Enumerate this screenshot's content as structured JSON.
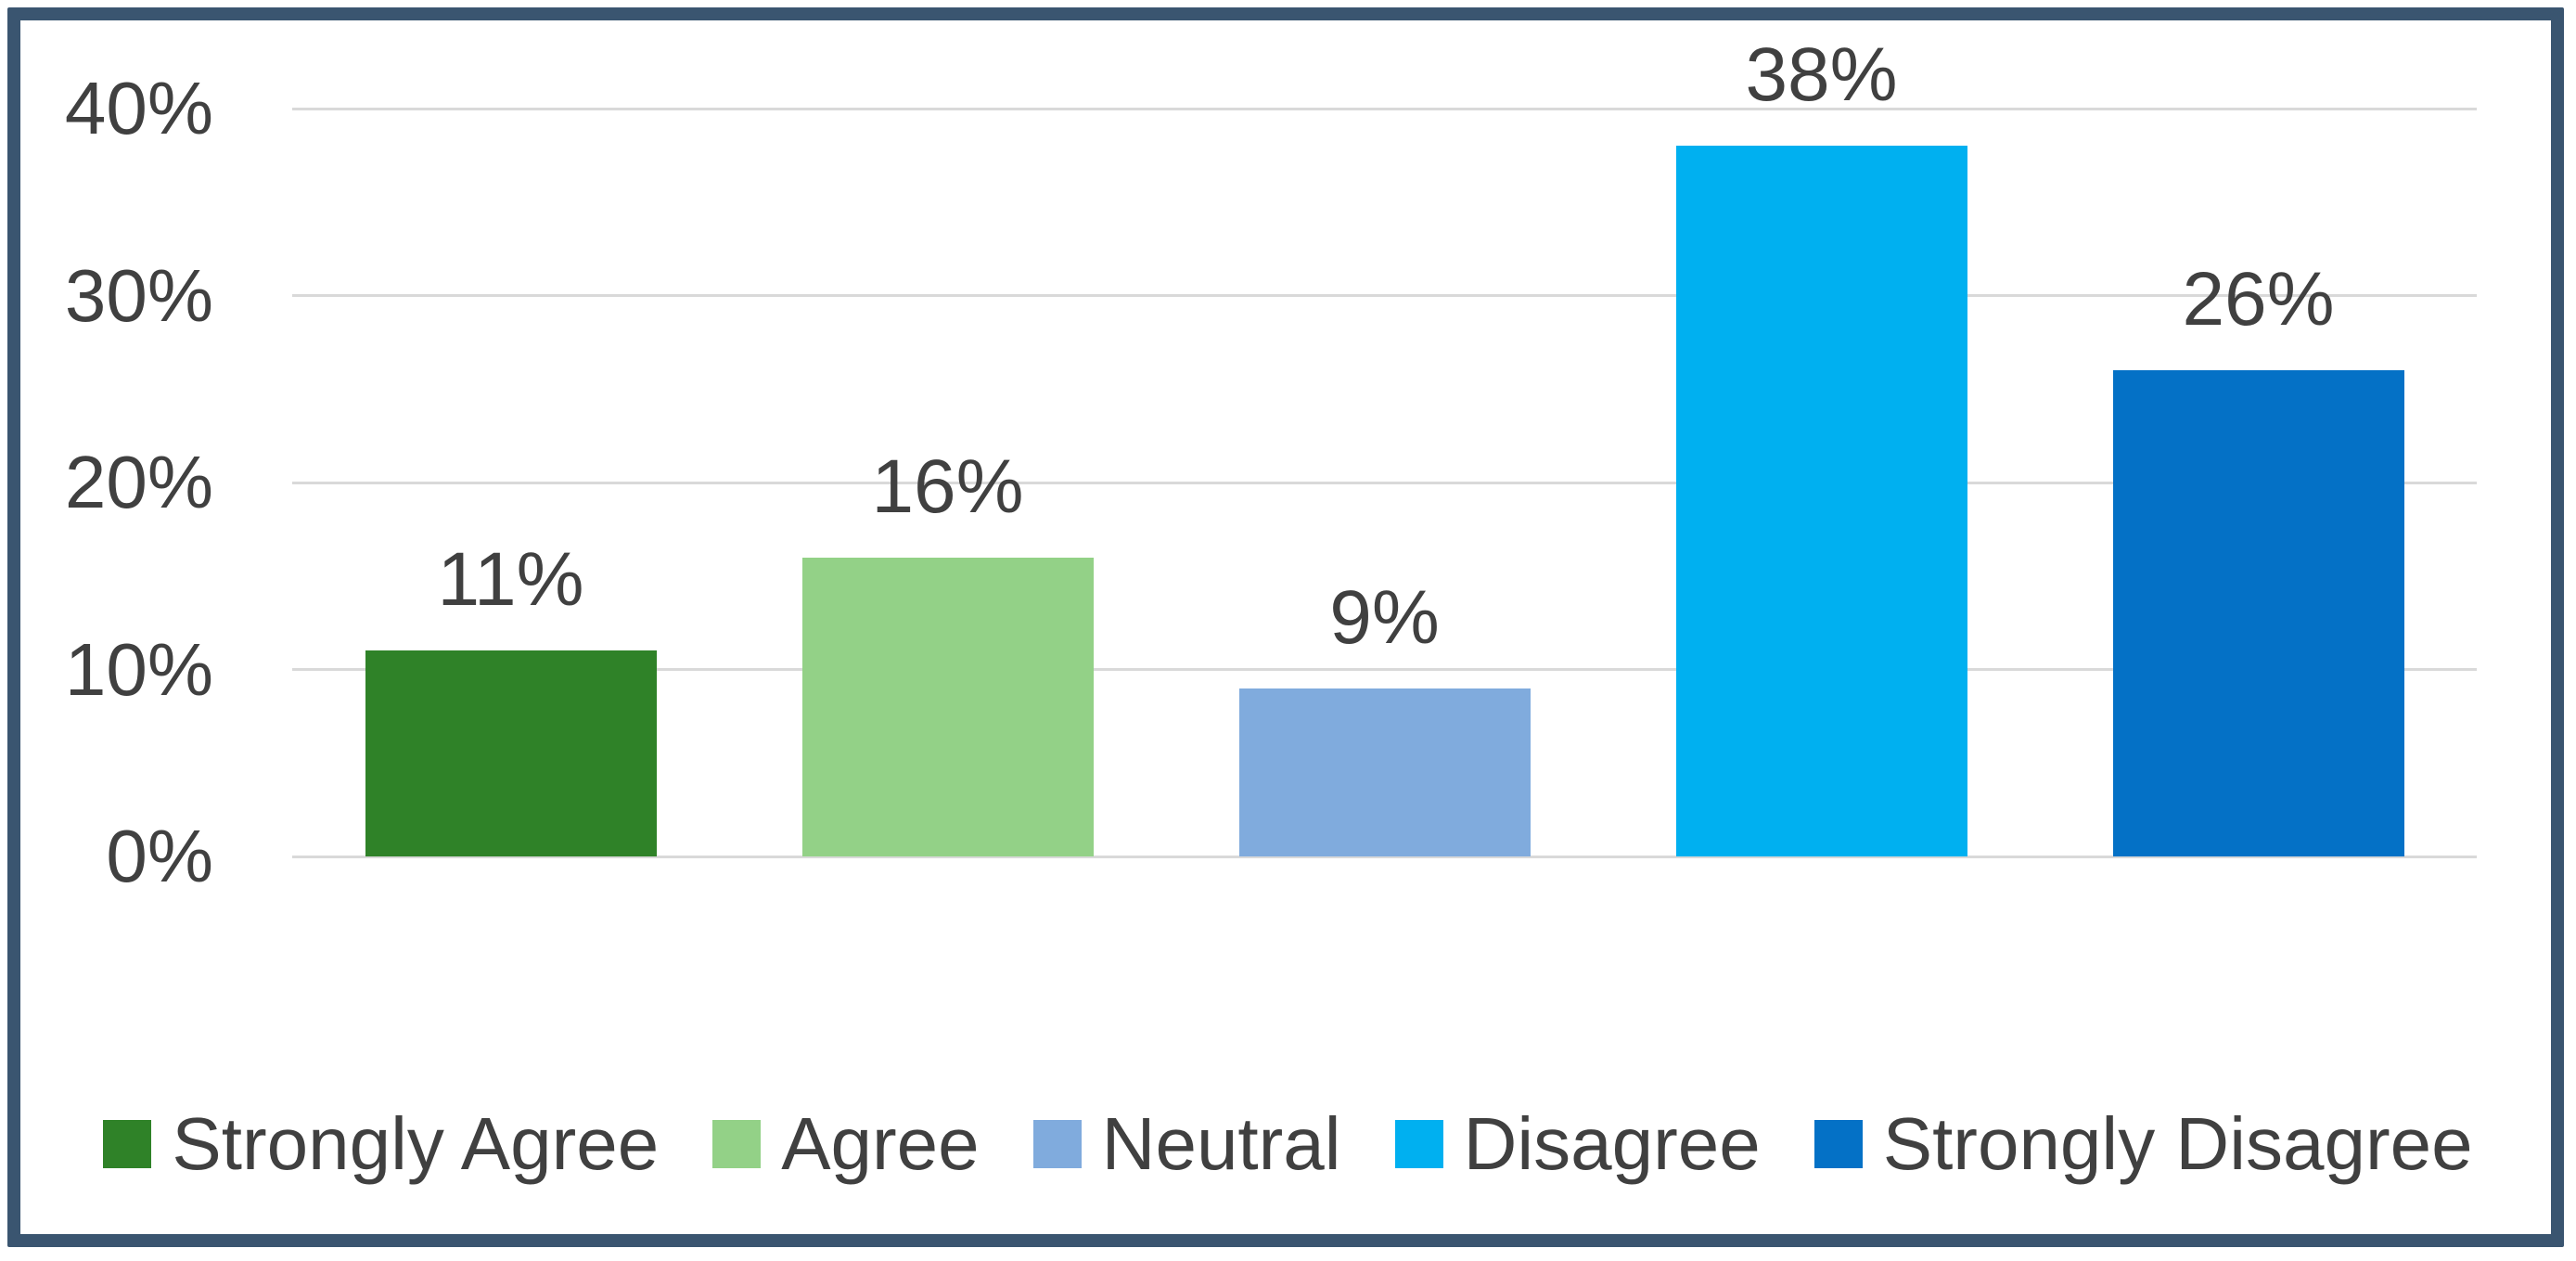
{
  "chart_data": {
    "type": "bar",
    "title": "",
    "xlabel": "",
    "ylabel": "",
    "categories": [
      "Strongly Agree",
      "Agree",
      "Neutral",
      "Disagree",
      "Strongly Disagree"
    ],
    "values": [
      11,
      16,
      9,
      38,
      26
    ],
    "value_labels": [
      "11%",
      "16%",
      "9%",
      "38%",
      "26%"
    ],
    "bar_colors": [
      "#2F8228",
      "#93D187",
      "#80ABDD",
      "#00B0F0",
      "#0471C6"
    ],
    "ylim": [
      0,
      40
    ],
    "yticks": [
      {
        "value": 0,
        "label": "0%"
      },
      {
        "value": 10,
        "label": "10%"
      },
      {
        "value": 20,
        "label": "20%"
      },
      {
        "value": 30,
        "label": "30%"
      },
      {
        "value": 40,
        "label": "40%"
      }
    ],
    "grid": "horizontal",
    "legend_position": "bottom",
    "legend": [
      {
        "label": "Strongly Agree",
        "color": "#2F8228"
      },
      {
        "label": "Agree",
        "color": "#93D187"
      },
      {
        "label": "Neutral",
        "color": "#80ABDD"
      },
      {
        "label": "Disagree",
        "color": "#00B0F0"
      },
      {
        "label": "Strongly Disagree",
        "color": "#0471C6"
      }
    ]
  },
  "style": {
    "frame_border_color": "#3A5570",
    "background_color": "#FFFFFF",
    "gridline_color": "#D9D9D9",
    "label_text_color": "#404040"
  }
}
